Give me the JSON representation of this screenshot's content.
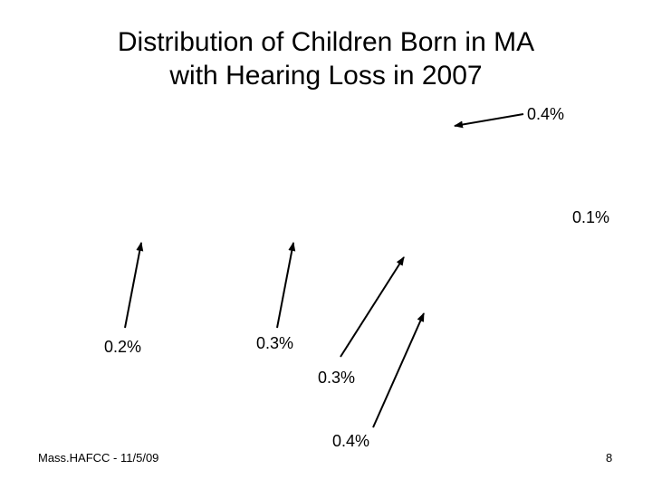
{
  "slide": {
    "title_line1": "Distribution of Children Born in MA",
    "title_line2": "with Hearing Loss in 2007",
    "footer_text": "Mass.HAFCC - 11/5/09",
    "page_number": "8"
  },
  "callouts": [
    {
      "id": "top-right",
      "value": "0.4%"
    },
    {
      "id": "right",
      "value": "0.1%"
    },
    {
      "id": "far-left",
      "value": "0.2%"
    },
    {
      "id": "left",
      "value": "0.3%"
    },
    {
      "id": "center",
      "value": "0.3%"
    },
    {
      "id": "bottom-center",
      "value": "0.4%"
    }
  ],
  "colors": {
    "text": "#000000",
    "arrow": "#000000",
    "background": "#ffffff"
  }
}
